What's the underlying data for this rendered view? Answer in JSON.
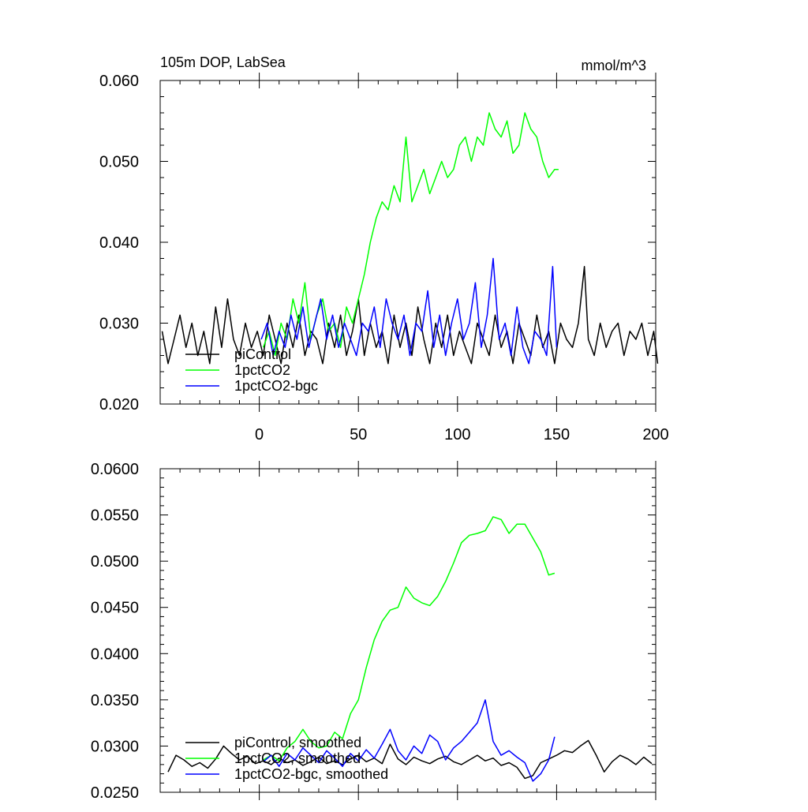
{
  "chart_data": [
    {
      "type": "line",
      "title": "105m DOP, LabSea",
      "units": "mmol/m^3",
      "xlim": [
        -50,
        200
      ],
      "ylim": [
        0.02,
        0.06
      ],
      "xticks": [
        0,
        50,
        100,
        150,
        200
      ],
      "xtick_labels": [
        "0",
        "50",
        "100",
        "150",
        "200"
      ],
      "yticks": [
        0.02,
        0.03,
        0.04,
        0.05,
        0.06
      ],
      "ytick_labels": [
        "0.020",
        "0.030",
        "0.040",
        "0.050",
        "0.060"
      ],
      "legend_position": "bottom-left",
      "grid": false,
      "series": [
        {
          "name": "piControl",
          "color": "#000000",
          "x": [
            -49,
            -46,
            -43,
            -40,
            -37,
            -34,
            -31,
            -28,
            -25,
            -22,
            -19,
            -16,
            -13,
            -10,
            -7,
            -4,
            -1,
            2,
            5,
            8,
            11,
            14,
            17,
            20,
            23,
            26,
            29,
            32,
            35,
            38,
            41,
            44,
            47,
            50,
            53,
            56,
            59,
            62,
            65,
            68,
            71,
            74,
            77,
            80,
            83,
            86,
            89,
            92,
            95,
            98,
            101,
            104,
            107,
            110,
            113,
            116,
            119,
            122,
            125,
            128,
            131,
            134,
            137,
            140,
            143,
            146,
            149,
            152,
            155,
            158,
            161,
            164,
            166,
            169,
            172,
            175,
            178,
            181,
            184,
            187,
            190,
            193,
            196,
            199,
            201
          ],
          "y": [
            0.029,
            0.025,
            0.028,
            0.031,
            0.027,
            0.03,
            0.026,
            0.029,
            0.025,
            0.032,
            0.027,
            0.033,
            0.028,
            0.026,
            0.03,
            0.027,
            0.029,
            0.026,
            0.031,
            0.028,
            0.025,
            0.03,
            0.027,
            0.031,
            0.026,
            0.029,
            0.028,
            0.025,
            0.03,
            0.027,
            0.031,
            0.026,
            0.029,
            0.033,
            0.026,
            0.03,
            0.027,
            0.029,
            0.025,
            0.031,
            0.027,
            0.03,
            0.026,
            0.032,
            0.028,
            0.025,
            0.03,
            0.027,
            0.031,
            0.026,
            0.029,
            0.027,
            0.025,
            0.03,
            0.028,
            0.026,
            0.031,
            0.027,
            0.029,
            0.025,
            0.03,
            0.028,
            0.026,
            0.031,
            0.027,
            0.029,
            0.025,
            0.03,
            0.028,
            0.027,
            0.03,
            0.037,
            0.028,
            0.026,
            0.03,
            0.027,
            0.029,
            0.03,
            0.026,
            0.029,
            0.028,
            0.03,
            0.026,
            0.029,
            0.025
          ]
        },
        {
          "name": "1pctCO2",
          "color": "#00ff00",
          "x": [
            2,
            5,
            8,
            11,
            14,
            17,
            20,
            23,
            26,
            29,
            32,
            35,
            38,
            41,
            44,
            47,
            50,
            53,
            56,
            59,
            62,
            65,
            68,
            71,
            74,
            77,
            80,
            83,
            86,
            89,
            92,
            95,
            98,
            101,
            104,
            107,
            110,
            113,
            116,
            119,
            122,
            125,
            128,
            131,
            134,
            137,
            140,
            143,
            146,
            149,
            151
          ],
          "y": [
            0.027,
            0.029,
            0.026,
            0.03,
            0.028,
            0.033,
            0.03,
            0.035,
            0.028,
            0.031,
            0.033,
            0.029,
            0.03,
            0.027,
            0.032,
            0.03,
            0.033,
            0.036,
            0.04,
            0.043,
            0.045,
            0.044,
            0.047,
            0.045,
            0.053,
            0.045,
            0.047,
            0.049,
            0.046,
            0.048,
            0.05,
            0.048,
            0.049,
            0.052,
            0.053,
            0.05,
            0.053,
            0.052,
            0.056,
            0.054,
            0.053,
            0.055,
            0.051,
            0.052,
            0.056,
            0.054,
            0.053,
            0.05,
            0.048,
            0.049,
            0.049
          ]
        },
        {
          "name": "1pctCO2-bgc",
          "color": "#0000ff",
          "x": [
            1,
            4,
            7,
            10,
            13,
            16,
            19,
            22,
            25,
            28,
            31,
            34,
            37,
            40,
            43,
            46,
            49,
            52,
            55,
            58,
            61,
            64,
            67,
            70,
            73,
            76,
            79,
            82,
            85,
            88,
            91,
            94,
            97,
            100,
            103,
            106,
            109,
            112,
            115,
            118,
            121,
            124,
            127,
            130,
            133,
            136,
            139,
            142,
            145,
            148,
            150
          ],
          "y": [
            0.028,
            0.03,
            0.026,
            0.029,
            0.027,
            0.031,
            0.028,
            0.032,
            0.027,
            0.03,
            0.033,
            0.028,
            0.031,
            0.027,
            0.03,
            0.028,
            0.026,
            0.03,
            0.029,
            0.032,
            0.027,
            0.033,
            0.03,
            0.028,
            0.031,
            0.026,
            0.03,
            0.029,
            0.034,
            0.027,
            0.031,
            0.026,
            0.03,
            0.033,
            0.028,
            0.03,
            0.035,
            0.027,
            0.031,
            0.038,
            0.028,
            0.03,
            0.026,
            0.032,
            0.027,
            0.025,
            0.029,
            0.028,
            0.026,
            0.037,
            0.027
          ]
        }
      ]
    },
    {
      "type": "line",
      "xlim": [
        -50,
        200
      ],
      "ylim": [
        0.025,
        0.06
      ],
      "xticks": [
        0,
        50,
        100,
        150,
        200
      ],
      "yticks": [
        0.025,
        0.03,
        0.035,
        0.04,
        0.045,
        0.05,
        0.055,
        0.06
      ],
      "ytick_labels": [
        "0.0250",
        "0.0300",
        "0.0350",
        "0.0400",
        "0.0450",
        "0.0500",
        "0.0550",
        "0.0600"
      ],
      "legend_position": "bottom-left",
      "grid": false,
      "series": [
        {
          "name": "piControl, smoothed",
          "color": "#000000",
          "x": [
            -46,
            -42,
            -38,
            -34,
            -30,
            -26,
            -22,
            -18,
            -14,
            -10,
            -6,
            -2,
            2,
            6,
            10,
            14,
            18,
            22,
            26,
            30,
            34,
            38,
            42,
            46,
            50,
            54,
            58,
            62,
            66,
            70,
            74,
            78,
            82,
            86,
            90,
            94,
            98,
            102,
            106,
            110,
            114,
            118,
            122,
            126,
            130,
            134,
            138,
            142,
            146,
            150,
            154,
            158,
            162,
            166,
            170,
            174,
            178,
            182,
            186,
            190,
            194,
            198
          ],
          "y": [
            0.0272,
            0.029,
            0.0285,
            0.0278,
            0.0282,
            0.0276,
            0.0286,
            0.03,
            0.0292,
            0.0285,
            0.0289,
            0.0281,
            0.0284,
            0.028,
            0.0287,
            0.0282,
            0.0285,
            0.0279,
            0.0283,
            0.0288,
            0.0281,
            0.0284,
            0.028,
            0.0286,
            0.029,
            0.0283,
            0.0287,
            0.0281,
            0.0302,
            0.0286,
            0.028,
            0.0288,
            0.0284,
            0.0281,
            0.0286,
            0.0289,
            0.0283,
            0.028,
            0.0285,
            0.029,
            0.0284,
            0.0287,
            0.0279,
            0.0282,
            0.0277,
            0.0265,
            0.0268,
            0.0282,
            0.0286,
            0.029,
            0.0295,
            0.0293,
            0.03,
            0.0306,
            0.029,
            0.0272,
            0.0283,
            0.029,
            0.0286,
            0.028,
            0.0288,
            0.0281
          ]
        },
        {
          "name": "1pctCO2, smoothed",
          "color": "#00ff00",
          "x": [
            2,
            6,
            10,
            14,
            18,
            22,
            26,
            30,
            34,
            38,
            42,
            46,
            50,
            54,
            58,
            62,
            66,
            70,
            74,
            78,
            82,
            86,
            90,
            94,
            98,
            102,
            106,
            110,
            114,
            118,
            122,
            126,
            130,
            134,
            138,
            142,
            146,
            149
          ],
          "y": [
            0.0285,
            0.029,
            0.0284,
            0.0298,
            0.0305,
            0.0318,
            0.0305,
            0.0298,
            0.03,
            0.0315,
            0.0308,
            0.0335,
            0.035,
            0.0385,
            0.0415,
            0.0435,
            0.0447,
            0.045,
            0.0472,
            0.046,
            0.0455,
            0.0452,
            0.0462,
            0.0478,
            0.0498,
            0.052,
            0.0528,
            0.053,
            0.0533,
            0.0548,
            0.0545,
            0.053,
            0.054,
            0.054,
            0.0525,
            0.051,
            0.0485,
            0.0487
          ]
        },
        {
          "name": "1pctCO2-bgc, smoothed",
          "color": "#0000ff",
          "x": [
            2,
            6,
            10,
            14,
            18,
            22,
            26,
            30,
            34,
            38,
            42,
            46,
            50,
            54,
            58,
            62,
            66,
            70,
            74,
            78,
            82,
            86,
            90,
            94,
            98,
            102,
            106,
            110,
            114,
            118,
            122,
            126,
            130,
            134,
            138,
            142,
            146,
            149
          ],
          "y": [
            0.0283,
            0.029,
            0.0278,
            0.0292,
            0.0285,
            0.0298,
            0.029,
            0.0282,
            0.0295,
            0.0287,
            0.0278,
            0.0292,
            0.0284,
            0.0296,
            0.0287,
            0.0302,
            0.0318,
            0.0295,
            0.0285,
            0.03,
            0.0292,
            0.0312,
            0.0305,
            0.0285,
            0.0298,
            0.0305,
            0.0315,
            0.0325,
            0.035,
            0.0305,
            0.029,
            0.0295,
            0.0288,
            0.0282,
            0.0262,
            0.027,
            0.0285,
            0.031
          ]
        }
      ]
    }
  ]
}
